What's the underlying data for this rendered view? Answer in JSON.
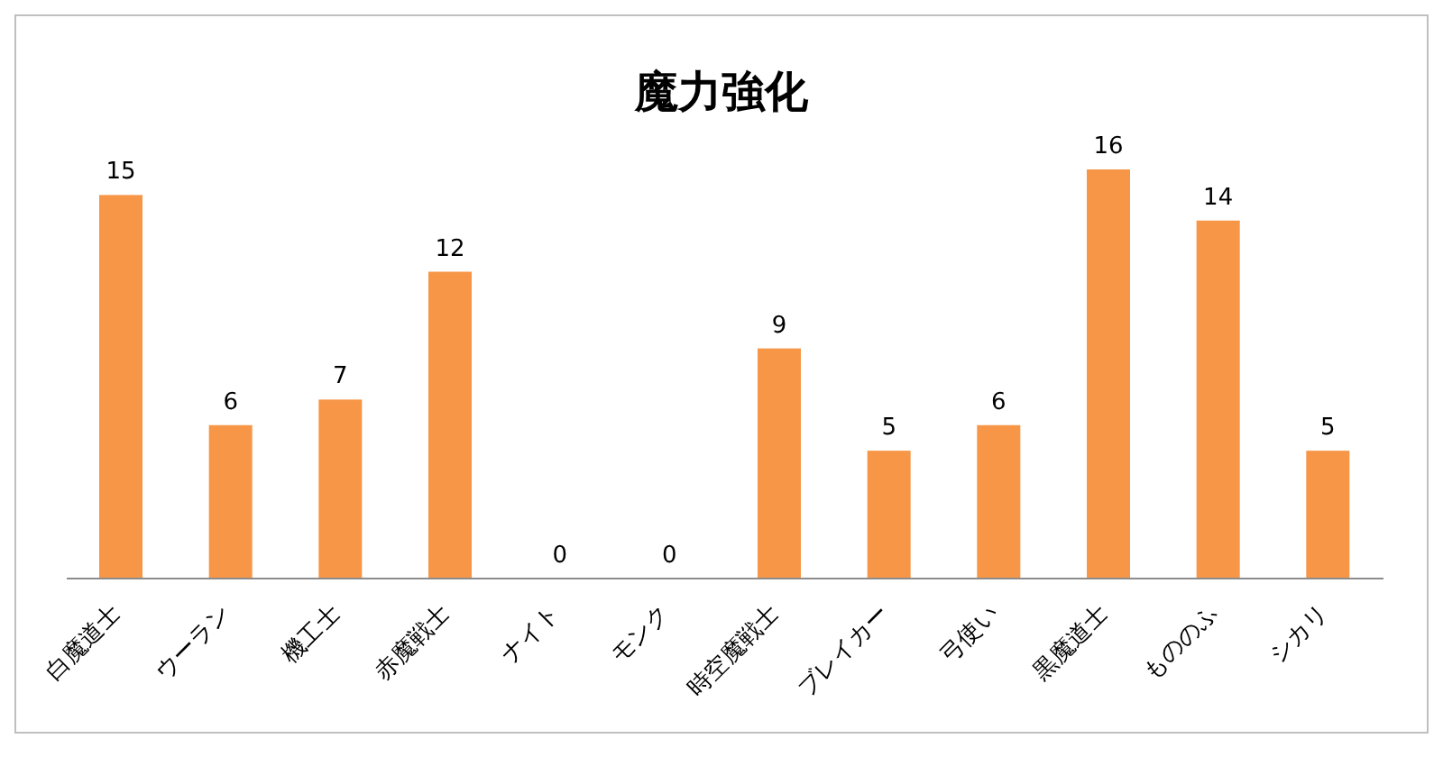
{
  "chart_data": {
    "type": "bar",
    "title": "魔力強化",
    "categories": [
      "白魔道士",
      "ウーラン",
      "機工士",
      "赤魔戦士",
      "ナイト",
      "モンク",
      "時空魔戦士",
      "ブレイカー",
      "弓使い",
      "黒魔道士",
      "もののふ",
      "シカリ"
    ],
    "values": [
      15,
      6,
      7,
      12,
      0,
      0,
      9,
      5,
      6,
      16,
      14,
      5
    ],
    "color": "#f79646",
    "data_labels": true,
    "tick_labels": "x"
  }
}
